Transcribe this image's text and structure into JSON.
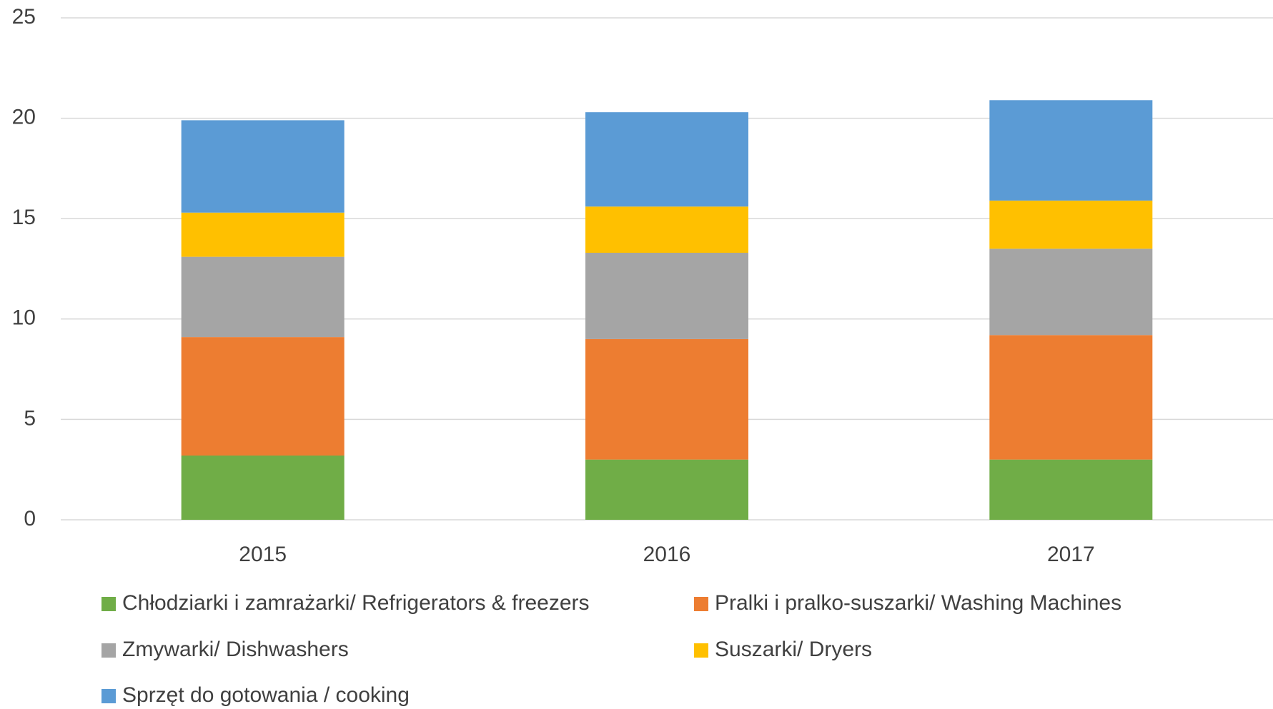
{
  "chart_data": {
    "type": "stacked_bar",
    "categories": [
      "2015",
      "2016",
      "2017"
    ],
    "series": [
      {
        "name": "Chłodziarki i zamrażarki/ Refrigerators & freezers",
        "color": "#70ad47",
        "values": [
          3.2,
          3.0,
          3.0
        ]
      },
      {
        "name": "Pralki i pralko-suszarki/ Washing Machines",
        "color": "#ed7d31",
        "values": [
          5.9,
          6.0,
          6.2
        ]
      },
      {
        "name": "Zmywarki/ Dishwashers",
        "color": "#a5a5a5",
        "values": [
          4.0,
          4.3,
          4.3
        ]
      },
      {
        "name": "Suszarki/ Dryers",
        "color": "#ffc000",
        "values": [
          2.2,
          2.3,
          2.4
        ]
      },
      {
        "name": "Sprzęt do gotowania / cooking",
        "color": "#5b9bd5",
        "values": [
          4.6,
          4.7,
          5.0
        ]
      }
    ],
    "ylim": [
      0,
      25
    ],
    "yticks": [
      0,
      5,
      10,
      15,
      20,
      25
    ],
    "grid": true,
    "legend": "bottom"
  }
}
